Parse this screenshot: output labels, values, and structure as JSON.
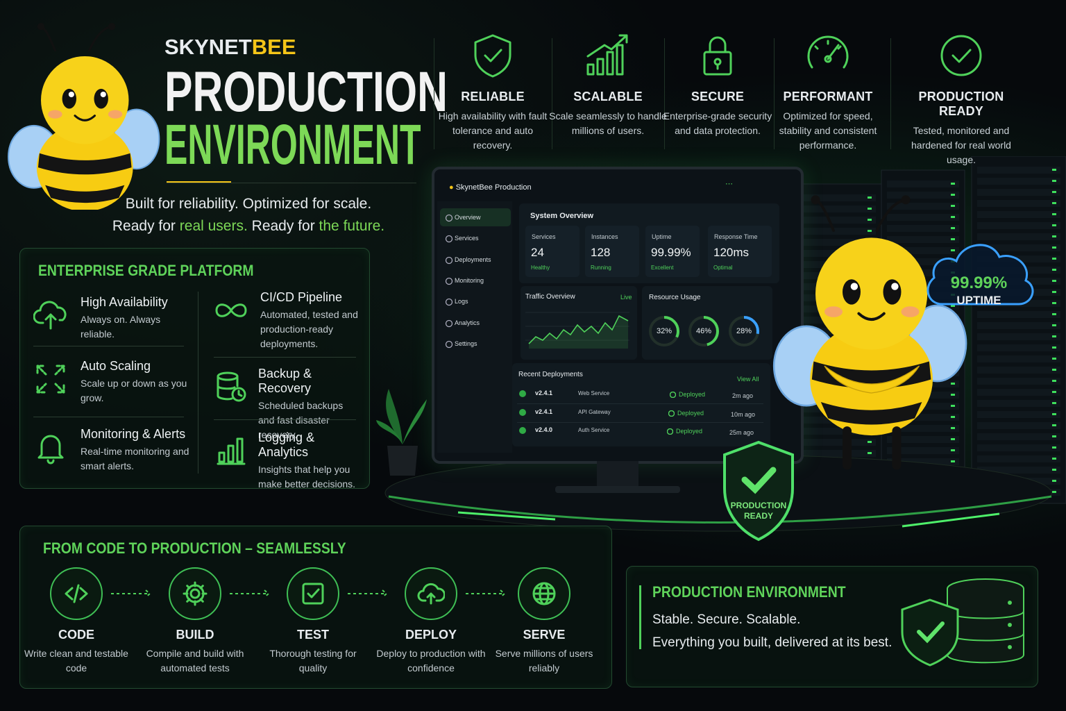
{
  "header": {
    "brand": [
      "SKYNET",
      "BEE"
    ],
    "title": [
      "PRODUCTION",
      "ENVIRONMENT"
    ],
    "tagline": "Built for reliability. Optimized for scale.",
    "tagline2": [
      "Ready for",
      "real users.",
      "Ready for",
      "the future."
    ]
  },
  "features": [
    {
      "title": "RELIABLE",
      "text": "High availability with fault tolerance and auto recovery."
    },
    {
      "title": "SCALABLE",
      "text": "Scale seamlessly to handle millions of users."
    },
    {
      "title": "SECURE",
      "text": "Enterprise-grade security and data protection."
    },
    {
      "title": "PERFORMANT",
      "text": "Optimized for speed, stability and consistent performance."
    },
    {
      "title": "PRODUCTION READY",
      "text": "Tested, monitored and hardened for real world usage."
    }
  ],
  "platform": {
    "title": "ENTERPRISE GRADE PLATFORM",
    "items": [
      {
        "title": "High Availability",
        "text": "Always on. Always reliable."
      },
      {
        "title": "Auto Scaling",
        "text": "Scale up or down as you grow."
      },
      {
        "title": "Monitoring & Alerts",
        "text": "Real-time monitoring and smart alerts."
      },
      {
        "title": "CI/CD Pipeline",
        "text": "Automated, tested and production-ready deployments."
      },
      {
        "title": "Backup & Recovery",
        "text": "Scheduled backups and fast disaster recovery."
      },
      {
        "title": "Logging & Analytics",
        "text": "Insights that help you make better decisions."
      }
    ]
  },
  "dashboard": {
    "app": "SkynetBee Production",
    "nav": [
      "Overview",
      "Services",
      "Deployments",
      "Monitoring",
      "Logs",
      "Analytics",
      "Settings"
    ],
    "overview": "System Overview",
    "stats": [
      {
        "label": "Services",
        "value": "24",
        "status": "Healthy"
      },
      {
        "label": "Instances",
        "value": "128",
        "status": "Running"
      },
      {
        "label": "Uptime",
        "value": "99.99%",
        "status": "Excellent"
      },
      {
        "label": "Response Time",
        "value": "120ms",
        "status": "Optimal"
      }
    ],
    "traffic": {
      "title": "Traffic Overview",
      "badge": "Live"
    },
    "resources": {
      "title": "Resource Usage",
      "values": [
        32,
        46,
        28
      ],
      "value_labels": [
        "32%",
        "46%",
        "28%"
      ]
    },
    "deployments": {
      "title": "Recent Deployments",
      "link": "View All",
      "rows": [
        [
          "v2.4.1",
          "Web Service",
          "Deployed",
          "2m ago"
        ],
        [
          "v2.4.1",
          "API Gateway",
          "Deployed",
          "10m ago"
        ],
        [
          "v2.4.0",
          "Auth Service",
          "Deployed",
          "25m ago"
        ]
      ]
    }
  },
  "uptime": {
    "value": "99.99%",
    "label": "UPTIME"
  },
  "badge": [
    "PRODUCTION",
    "READY"
  ],
  "pipeline": {
    "title": "FROM CODE TO PRODUCTION – SEAMLESSLY",
    "steps": [
      {
        "title": "CODE",
        "text": "Write clean and testable code"
      },
      {
        "title": "BUILD",
        "text": "Compile and build with automated tests"
      },
      {
        "title": "TEST",
        "text": "Thorough testing for quality"
      },
      {
        "title": "DEPLOY",
        "text": "Deploy to production with confidence"
      },
      {
        "title": "SERVE",
        "text": "Serve millions of users reliably"
      }
    ]
  },
  "summary": {
    "title": "PRODUCTION ENVIRONMENT",
    "lines": [
      "Stable. Secure. Scalable.",
      "Everything you built, delivered at its best."
    ]
  }
}
